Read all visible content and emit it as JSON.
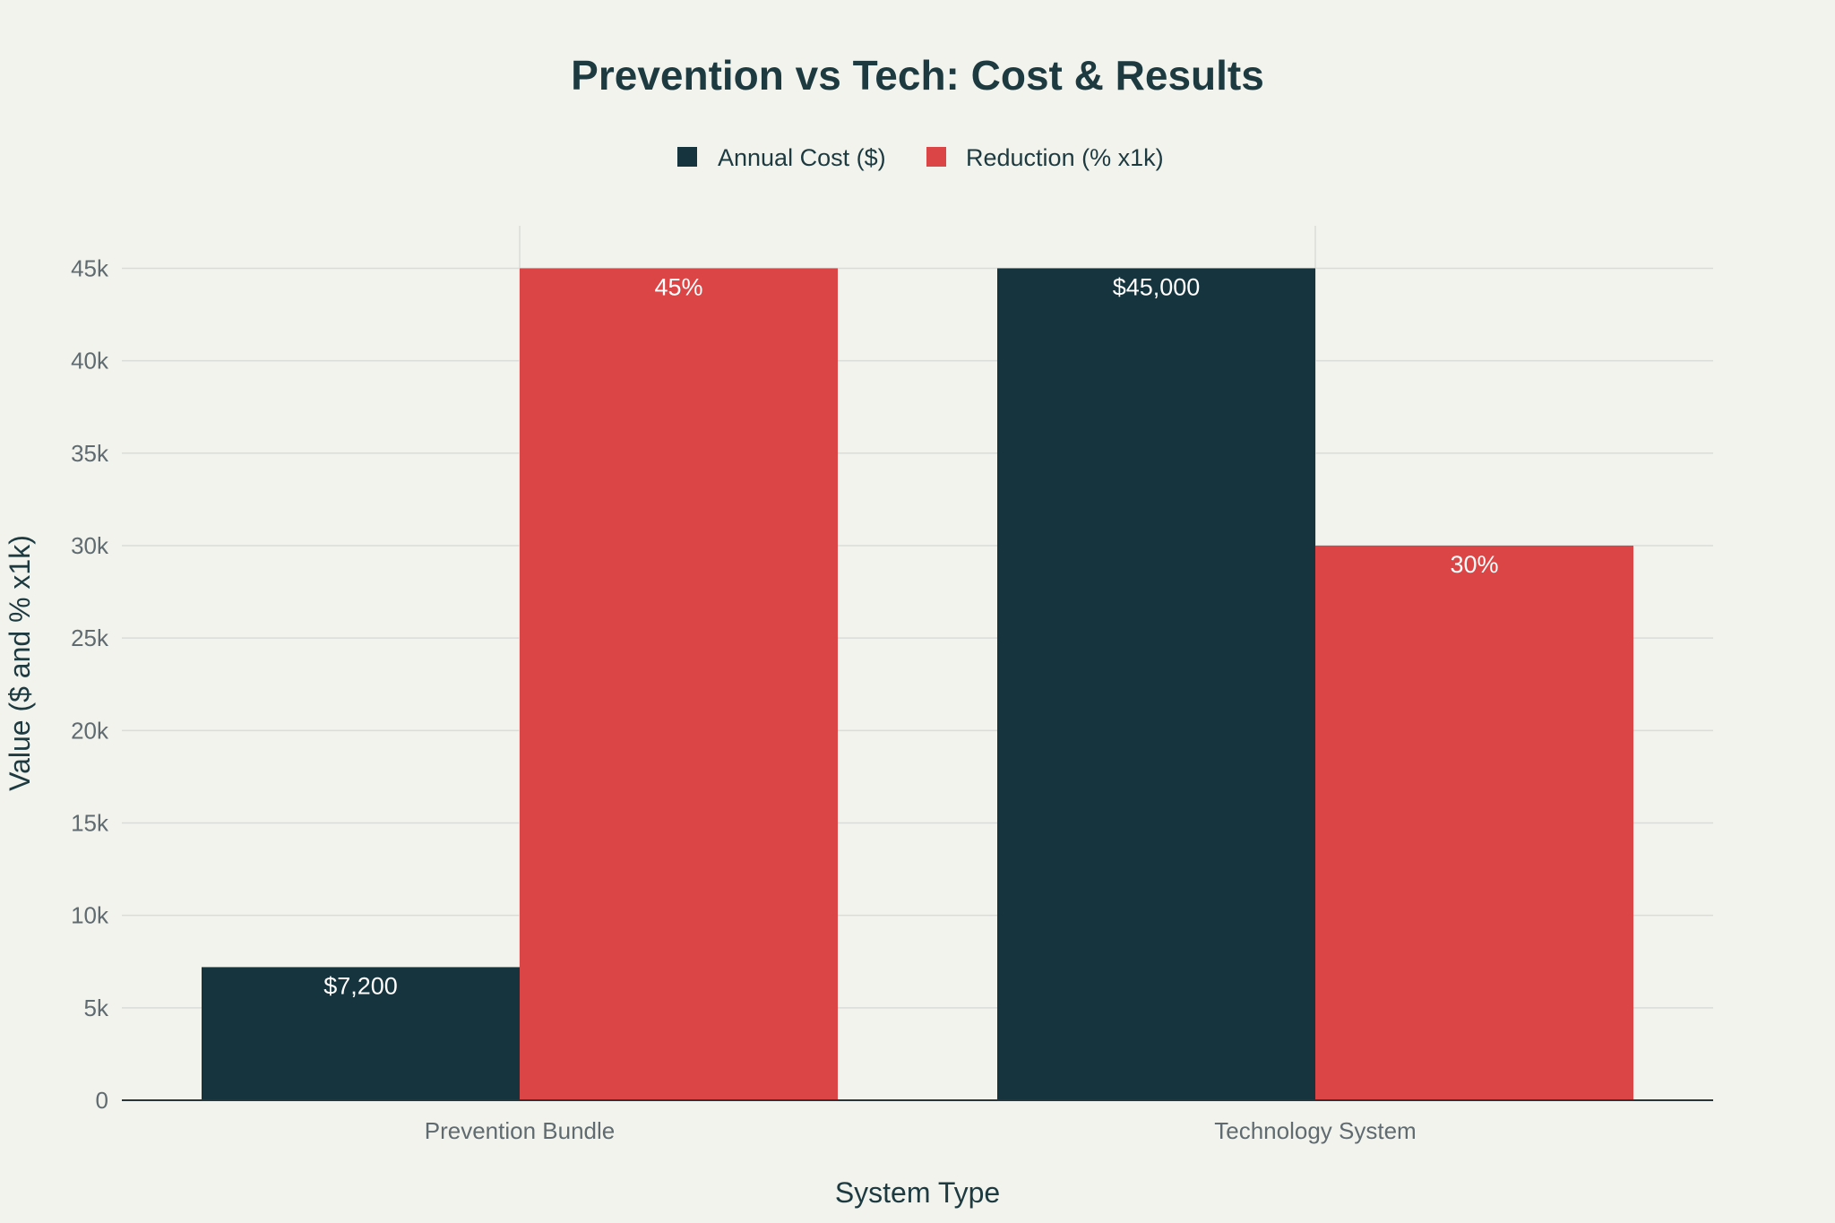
{
  "chart_data": {
    "type": "bar",
    "title": "Prevention vs Tech: Cost & Results",
    "xlabel": "System Type",
    "ylabel": "Value ($ and % x1k)",
    "categories": [
      "Prevention Bundle",
      "Technology System"
    ],
    "series": [
      {
        "name": "Annual Cost ($)",
        "color": "#15343e",
        "values": [
          7200,
          45000
        ],
        "labels": [
          "$7,200",
          "$45,000"
        ]
      },
      {
        "name": "Reduction (% x1k)",
        "color": "#dc4546",
        "values": [
          45000,
          30000
        ],
        "labels": [
          "45%",
          "30%"
        ]
      }
    ],
    "ylim": [
      0,
      47300
    ],
    "yticks": [
      0,
      5000,
      10000,
      15000,
      20000,
      25000,
      30000,
      35000,
      40000,
      45000
    ],
    "ytick_labels": [
      "0",
      "5k",
      "10k",
      "15k",
      "20k",
      "25k",
      "30k",
      "35k",
      "40k",
      "45k"
    ],
    "grid": true,
    "legend_position": "top-center"
  }
}
